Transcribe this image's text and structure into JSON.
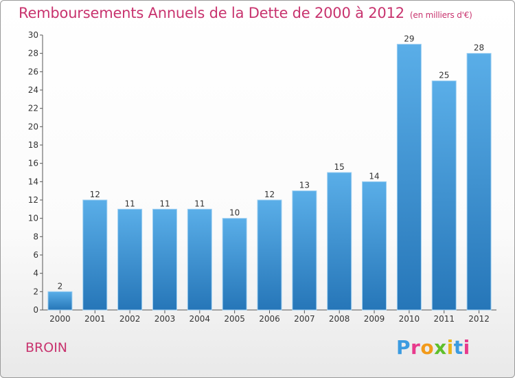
{
  "chart_data": {
    "type": "bar",
    "title": "Remboursements Annuels de la Dette de 2000 à 2012",
    "subtitle": "(en milliers d'€)",
    "categories": [
      "2000",
      "2001",
      "2002",
      "2003",
      "2004",
      "2005",
      "2006",
      "2007",
      "2008",
      "2009",
      "2010",
      "2011",
      "2012"
    ],
    "values": [
      2,
      12,
      11,
      11,
      11,
      10,
      12,
      13,
      15,
      14,
      29,
      25,
      28
    ],
    "ylim": [
      0,
      30
    ],
    "yticks": [
      0,
      2,
      4,
      6,
      8,
      10,
      12,
      14,
      16,
      18,
      20,
      22,
      24,
      26,
      28,
      30
    ],
    "grid": false,
    "bar_color_top": "#5aaee8",
    "bar_color_bottom": "#2676b8",
    "text_color": "#c8336e"
  },
  "footer": {
    "location": "BROIN",
    "logo_text": "Proxiti",
    "logo_colors": [
      "#3b9be0",
      "#e83a8c",
      "#f29a1a",
      "#5fbf2a",
      "#e8b41a",
      "#3b9be0",
      "#e83a8c"
    ]
  }
}
